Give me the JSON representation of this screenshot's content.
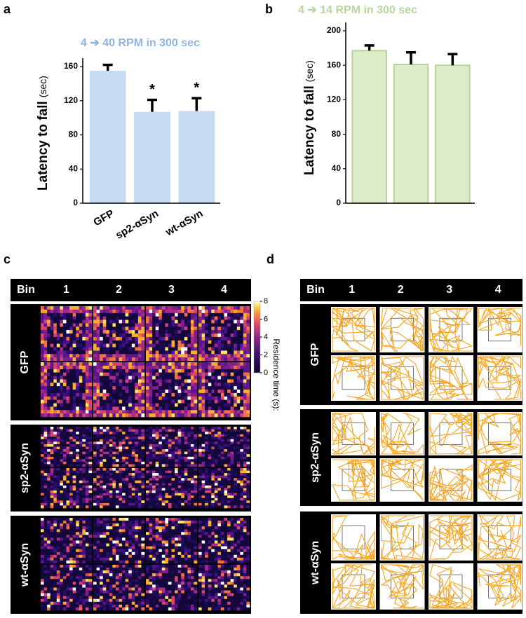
{
  "chart_data": [
    {
      "type": "bar",
      "panel": "a",
      "title": "4 ➔ 40 RPM in 300 sec",
      "title_color": "#8fb4e3",
      "y_label": "Latency to fall",
      "y_unit": "(sec)",
      "categories": [
        "GFP",
        "sp2-αSyn",
        "wt-αSyn"
      ],
      "values": [
        155,
        107,
        108
      ],
      "errors": [
        7,
        14,
        15
      ],
      "significance": [
        null,
        "*",
        "*"
      ],
      "color": "#c6daf2",
      "ylim": [
        0,
        160
      ],
      "yticks": [
        0,
        40,
        80,
        120,
        160
      ]
    },
    {
      "type": "bar",
      "panel": "b",
      "title": "4 ➔ 14 RPM in 300 sec",
      "title_color": "#b6d79b",
      "y_label": "Latency to fall",
      "y_unit": "(sec)",
      "categories": [
        null,
        null,
        null
      ],
      "values": [
        177,
        161,
        160
      ],
      "errors": [
        6,
        14,
        13
      ],
      "color": "#dcecc8",
      "edge_color": "#b7d597",
      "ylim": [
        0,
        200
      ],
      "yticks": [
        0,
        40,
        80,
        120,
        160,
        200
      ]
    }
  ],
  "panel_c": {
    "label": "c",
    "header": [
      "Bin",
      "1",
      "2",
      "3",
      "4"
    ],
    "groups": [
      "GFP",
      "sp2-αSyn",
      "wt-αSyn"
    ],
    "colorbar": {
      "label": "Residence time (s):",
      "range": [
        0,
        8
      ],
      "ticks": [
        0,
        2,
        4,
        6,
        8
      ]
    }
  },
  "panel_d": {
    "label": "d",
    "header": [
      "Bin",
      "1",
      "2",
      "3",
      "4"
    ],
    "groups": [
      "GFP",
      "sp2-αSyn",
      "wt-αSyn"
    ]
  }
}
